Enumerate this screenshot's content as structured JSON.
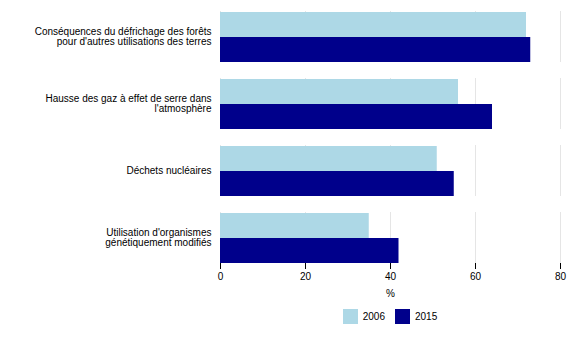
{
  "chart_data": {
    "type": "bar",
    "orientation": "horizontal",
    "categories": [
      "Utilisation d'organismes\ngénétiquement modifiés",
      "Déchets nucléaires",
      "Hausse des gaz à effet de serre dans\nl'atmosphère",
      "Conséquences du défrichage des forêts\npour d'autres utilisations des terres"
    ],
    "series": [
      {
        "name": "2006",
        "color": "#add8e6",
        "values": [
          35,
          51,
          56,
          72
        ]
      },
      {
        "name": "2015",
        "color": "#00008b",
        "values": [
          42,
          55,
          64,
          73
        ]
      }
    ],
    "xlabel": "%",
    "xlim": [
      0,
      80
    ],
    "xticks": [
      0,
      20,
      40,
      60,
      80
    ],
    "grid": true,
    "legend": "bottom"
  }
}
